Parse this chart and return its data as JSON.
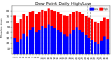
{
  "title": "Dew Point Daily High/Low",
  "ylabel_left": "Milwaukee, shown",
  "bar_high": [
    72,
    58,
    65,
    75,
    70,
    78,
    80,
    75,
    78,
    82,
    80,
    85,
    82,
    80,
    78,
    75,
    72,
    70,
    74,
    78,
    80,
    78,
    75,
    70,
    68,
    65,
    60,
    57,
    62,
    68,
    65
  ],
  "bar_low": [
    30,
    22,
    28,
    38,
    32,
    45,
    50,
    40,
    44,
    52,
    48,
    55,
    52,
    48,
    44,
    40,
    36,
    33,
    38,
    44,
    50,
    45,
    40,
    35,
    30,
    26,
    22,
    18,
    25,
    33,
    28
  ],
  "high_color": "#ff0000",
  "low_color": "#0000ff",
  "background_color": "#ffffff",
  "ylim": [
    0,
    90
  ],
  "yticks": [
    10,
    20,
    30,
    40,
    50,
    60,
    70,
    80
  ],
  "n_bars": 31,
  "legend_high": "High",
  "legend_low": "Low",
  "title_fontsize": 4.5,
  "tick_fontsize": 3.0,
  "dpi": 100,
  "dashed_lines": [
    23.5,
    24.5
  ]
}
